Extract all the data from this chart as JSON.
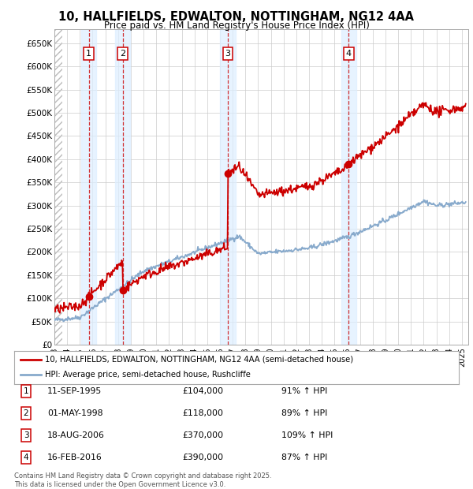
{
  "title1": "10, HALLFIELDS, EDWALTON, NOTTINGHAM, NG12 4AA",
  "title2": "Price paid vs. HM Land Registry's House Price Index (HPI)",
  "ylim": [
    0,
    680000
  ],
  "yticks": [
    0,
    50000,
    100000,
    150000,
    200000,
    250000,
    300000,
    350000,
    400000,
    450000,
    500000,
    550000,
    600000,
    650000
  ],
  "ytick_labels": [
    "£0",
    "£50K",
    "£100K",
    "£150K",
    "£200K",
    "£250K",
    "£300K",
    "£350K",
    "£400K",
    "£450K",
    "£500K",
    "£550K",
    "£600K",
    "£650K"
  ],
  "xlim_start": 1993.0,
  "xlim_end": 2025.5,
  "xtick_years": [
    1993,
    1994,
    1995,
    1996,
    1997,
    1998,
    1999,
    2000,
    2001,
    2002,
    2003,
    2004,
    2005,
    2006,
    2007,
    2008,
    2009,
    2010,
    2011,
    2012,
    2013,
    2014,
    2015,
    2016,
    2017,
    2018,
    2019,
    2020,
    2021,
    2022,
    2023,
    2024,
    2025
  ],
  "sale_dates": [
    1995.7,
    1998.37,
    2006.63,
    2016.12
  ],
  "sale_prices": [
    104000,
    118000,
    370000,
    390000
  ],
  "sale_color": "#cc0000",
  "sale_labels": [
    "1",
    "2",
    "3",
    "4"
  ],
  "hpi_color": "#88aacc",
  "legend_sale": "10, HALLFIELDS, EDWALTON, NOTTINGHAM, NG12 4AA (semi-detached house)",
  "legend_hpi": "HPI: Average price, semi-detached house, Rushcliffe",
  "table_entries": [
    {
      "label": "1",
      "date": "11-SEP-1995",
      "price": "£104,000",
      "hpi": "91% ↑ HPI"
    },
    {
      "label": "2",
      "date": "01-MAY-1998",
      "price": "£118,000",
      "hpi": "89% ↑ HPI"
    },
    {
      "label": "3",
      "date": "18-AUG-2006",
      "price": "£370,000",
      "hpi": "109% ↑ HPI"
    },
    {
      "label": "4",
      "date": "16-FEB-2016",
      "price": "£390,000",
      "hpi": "87% ↑ HPI"
    }
  ],
  "footer": "Contains HM Land Registry data © Crown copyright and database right 2025.\nThis data is licensed under the Open Government Licence v3.0.",
  "background_color": "#ffffff",
  "plot_bg": "#ffffff",
  "grid_color": "#cccccc",
  "shade_color": "#ddeeff"
}
